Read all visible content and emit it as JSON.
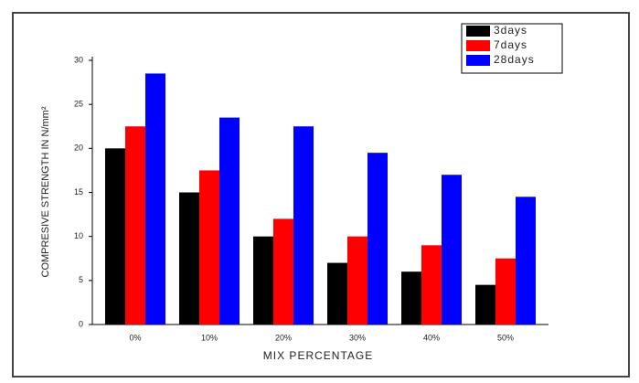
{
  "chart_data": {
    "type": "bar",
    "x_label": "MIX PERCENTAGE",
    "y_label": "COMPRESIVE STRENGTH IN N/mm²",
    "categories": [
      "0%",
      "10%",
      "20%",
      "30%",
      "40%",
      "50%"
    ],
    "series": [
      {
        "name": "3days",
        "color": "#000000",
        "values": [
          20,
          15,
          10,
          7,
          6,
          4.5
        ]
      },
      {
        "name": "7days",
        "color": "#ff0000",
        "values": [
          22.5,
          17.5,
          12,
          10,
          9,
          7.5
        ]
      },
      {
        "name": "28days",
        "color": "#0000ff",
        "values": [
          28.5,
          23.5,
          22.5,
          19.5,
          17,
          14.5
        ]
      }
    ],
    "ylim": [
      0,
      30
    ],
    "yticks": [
      0,
      5,
      10,
      15,
      20,
      25,
      30
    ]
  }
}
